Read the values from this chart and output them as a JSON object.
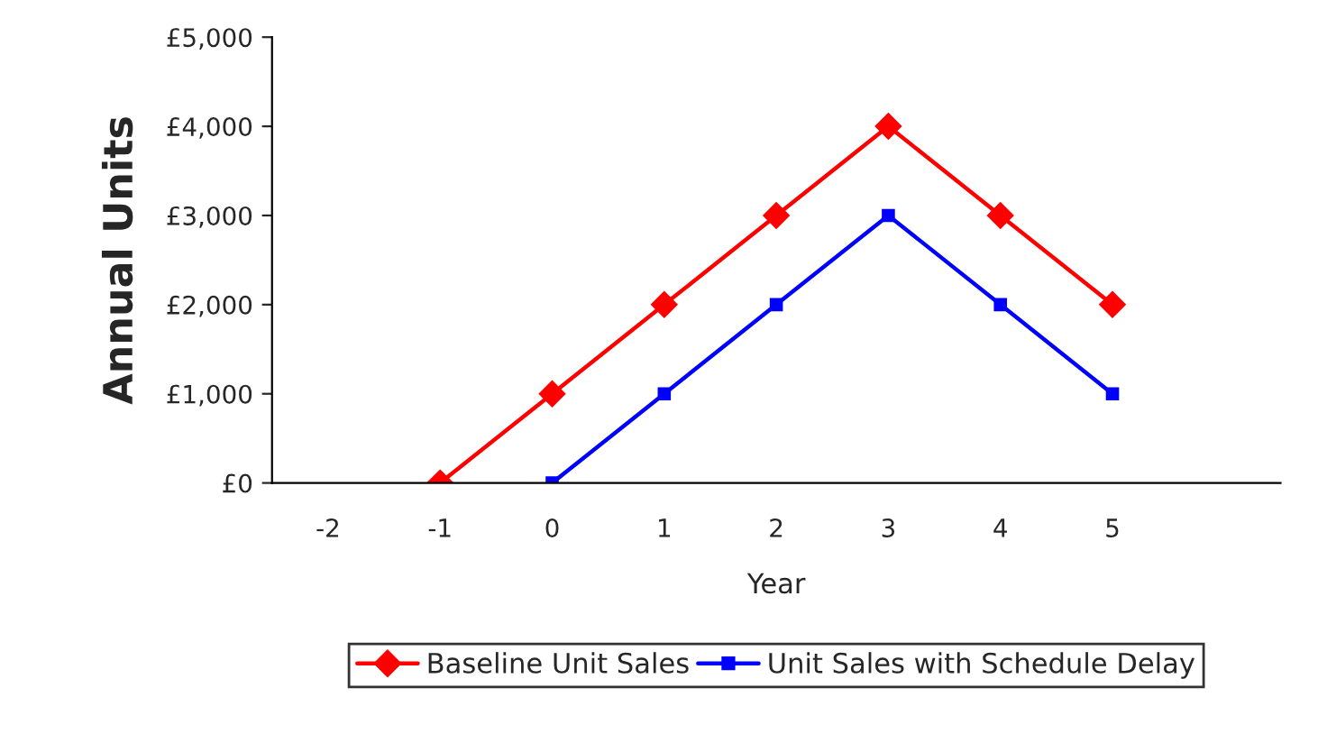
{
  "chart_data": {
    "type": "line",
    "xlabel": "Year",
    "ylabel": "Annual Units",
    "categories": [
      "-2",
      "-1",
      "0",
      "1",
      "2",
      "3",
      "4",
      "5",
      null
    ],
    "series": [
      {
        "name": "Baseline Unit Sales",
        "color": "#ff0000",
        "marker": "diamond",
        "values": [
          null,
          0,
          1000,
          2000,
          3000,
          4000,
          3000,
          2000,
          null
        ]
      },
      {
        "name": "Unit Sales with Schedule Delay",
        "color": "#0000ff",
        "marker": "square",
        "values": [
          null,
          null,
          0,
          1000,
          2000,
          3000,
          2000,
          1000,
          null
        ]
      }
    ],
    "ylim": [
      0,
      5000
    ],
    "yticks": [
      {
        "value": 0,
        "label": "£0"
      },
      {
        "value": 1000,
        "label": "£1,000"
      },
      {
        "value": 2000,
        "label": "£2,000"
      },
      {
        "value": 3000,
        "label": "£3,000"
      },
      {
        "value": 4000,
        "label": "£4,000"
      },
      {
        "value": 5000,
        "label": "£5,000"
      }
    ],
    "grid": false,
    "legend": "bottom"
  }
}
